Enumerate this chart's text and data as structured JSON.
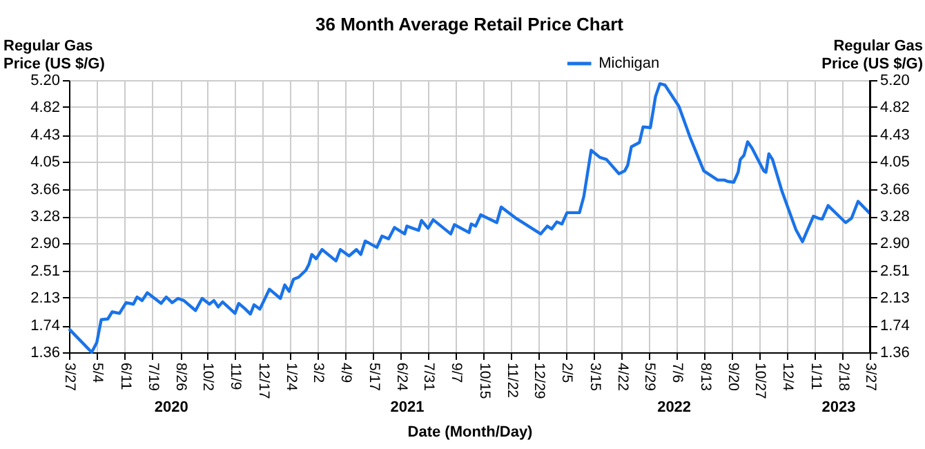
{
  "chart_data": {
    "type": "line",
    "title": "36 Month Average Retail Price Chart",
    "xlabel": "Date (Month/Day)",
    "ylabel": "Regular Gas\nPrice (US $/G)",
    "y2label": "Regular Gas\nPrice (US $/G)",
    "x": [
      "2020-03-27",
      "2020-04-27",
      "2020-05-04",
      "2020-05-10",
      "2020-05-19",
      "2020-05-25",
      "2020-06-04",
      "2020-06-13",
      "2020-06-23",
      "2020-06-28",
      "2020-07-05",
      "2020-07-12",
      "2020-07-31",
      "2020-08-07",
      "2020-08-15",
      "2020-08-23",
      "2020-08-31",
      "2020-09-16",
      "2020-09-25",
      "2020-10-05",
      "2020-10-11",
      "2020-10-17",
      "2020-10-23",
      "2020-11-09",
      "2020-11-14",
      "2020-11-22",
      "2020-11-30",
      "2020-12-05",
      "2020-12-13",
      "2020-12-26",
      "2021-01-10",
      "2021-01-16",
      "2021-01-22",
      "2021-01-28",
      "2021-02-04",
      "2021-02-14",
      "2021-02-18",
      "2021-02-22",
      "2021-02-28",
      "2021-03-08",
      "2021-03-27",
      "2021-04-02",
      "2021-04-14",
      "2021-04-24",
      "2021-04-30",
      "2021-05-06",
      "2021-05-22",
      "2021-05-29",
      "2021-06-07",
      "2021-06-15",
      "2021-06-29",
      "2021-07-02",
      "2021-07-18",
      "2021-07-22",
      "2021-07-31",
      "2021-08-07",
      "2021-08-31",
      "2021-09-05",
      "2021-09-25",
      "2021-09-28",
      "2021-10-04",
      "2021-10-11",
      "2021-11-02",
      "2021-11-08",
      "2021-11-27",
      "2022-01-01",
      "2022-01-10",
      "2022-01-16",
      "2022-01-23",
      "2022-01-30",
      "2022-02-06",
      "2022-02-23",
      "2022-03-01",
      "2022-03-11",
      "2022-03-23",
      "2022-04-01",
      "2022-04-18",
      "2022-04-26",
      "2022-04-30",
      "2022-05-05",
      "2022-05-16",
      "2022-05-21",
      "2022-05-31",
      "2022-06-07",
      "2022-06-13",
      "2022-06-20",
      "2022-07-09",
      "2022-07-24",
      "2022-08-12",
      "2022-08-31",
      "2022-09-09",
      "2022-09-14",
      "2022-09-22",
      "2022-09-28",
      "2022-10-01",
      "2022-10-06",
      "2022-10-11",
      "2022-10-17",
      "2022-11-02",
      "2022-11-05",
      "2022-11-09",
      "2022-11-14",
      "2022-11-27",
      "2022-12-16",
      "2022-12-25",
      "2023-01-01",
      "2023-01-09",
      "2023-01-16",
      "2023-01-21",
      "2023-01-29",
      "2023-02-22",
      "2023-03-02",
      "2023-03-11",
      "2023-03-27"
    ],
    "series": [
      {
        "name": "Michigan",
        "color": "#1a73e8",
        "values": [
          1.69,
          1.36,
          1.5,
          1.82,
          1.83,
          1.93,
          1.91,
          2.06,
          2.04,
          2.14,
          2.09,
          2.2,
          2.05,
          2.14,
          2.06,
          2.12,
          2.09,
          1.95,
          2.12,
          2.04,
          2.09,
          2.0,
          2.07,
          1.91,
          2.05,
          1.98,
          1.9,
          2.03,
          1.97,
          2.25,
          2.12,
          2.31,
          2.22,
          2.39,
          2.42,
          2.52,
          2.6,
          2.74,
          2.68,
          2.81,
          2.65,
          2.81,
          2.72,
          2.81,
          2.74,
          2.93,
          2.84,
          3.0,
          2.96,
          3.12,
          3.03,
          3.14,
          3.08,
          3.22,
          3.11,
          3.23,
          3.03,
          3.16,
          3.05,
          3.17,
          3.14,
          3.3,
          3.19,
          3.41,
          3.26,
          3.03,
          3.14,
          3.1,
          3.2,
          3.17,
          3.33,
          3.33,
          3.56,
          4.21,
          4.11,
          4.08,
          3.88,
          3.92,
          4.0,
          4.26,
          4.32,
          4.54,
          4.53,
          4.97,
          5.15,
          5.13,
          4.83,
          4.4,
          3.92,
          3.79,
          3.79,
          3.77,
          3.76,
          3.9,
          4.08,
          4.14,
          4.33,
          4.24,
          3.92,
          3.9,
          4.16,
          4.08,
          3.63,
          3.09,
          2.92,
          3.09,
          3.28,
          3.25,
          3.24,
          3.43,
          3.19,
          3.25,
          3.49,
          3.32
        ]
      }
    ],
    "xlim": [
      "2020-03-27",
      "2023-03-27"
    ],
    "xticks": [
      {
        "value": "2020-03-27",
        "label": "3/27"
      },
      {
        "value": "2020-05-04",
        "label": "5/4"
      },
      {
        "value": "2020-06-11",
        "label": "6/11"
      },
      {
        "value": "2020-07-19",
        "label": "7/19"
      },
      {
        "value": "2020-08-26",
        "label": "8/26"
      },
      {
        "value": "2020-10-02",
        "label": "10/2"
      },
      {
        "value": "2020-11-09",
        "label": "11/9"
      },
      {
        "value": "2020-12-17",
        "label": "12/17"
      },
      {
        "value": "2021-01-24",
        "label": "1/24"
      },
      {
        "value": "2021-03-02",
        "label": "3/2"
      },
      {
        "value": "2021-04-09",
        "label": "4/9"
      },
      {
        "value": "2021-05-17",
        "label": "5/17"
      },
      {
        "value": "2021-06-24",
        "label": "6/24"
      },
      {
        "value": "2021-07-31",
        "label": "7/31"
      },
      {
        "value": "2021-09-07",
        "label": "9/7"
      },
      {
        "value": "2021-10-15",
        "label": "10/15"
      },
      {
        "value": "2021-11-22",
        "label": "11/22"
      },
      {
        "value": "2021-12-29",
        "label": "12/29"
      },
      {
        "value": "2022-02-05",
        "label": "2/5"
      },
      {
        "value": "2022-03-15",
        "label": "3/15"
      },
      {
        "value": "2022-04-22",
        "label": "4/22"
      },
      {
        "value": "2022-05-29",
        "label": "5/29"
      },
      {
        "value": "2022-07-06",
        "label": "7/6"
      },
      {
        "value": "2022-08-13",
        "label": "8/13"
      },
      {
        "value": "2022-09-20",
        "label": "9/20"
      },
      {
        "value": "2022-10-27",
        "label": "10/27"
      },
      {
        "value": "2022-12-04",
        "label": "12/4"
      },
      {
        "value": "2023-01-11",
        "label": "1/11"
      },
      {
        "value": "2023-02-18",
        "label": "2/18"
      },
      {
        "value": "2023-03-27",
        "label": "3/27"
      }
    ],
    "ylim": [
      1.36,
      5.2
    ],
    "yticks": [
      1.36,
      1.74,
      2.13,
      2.51,
      {
        "value": 2.9,
        "label": "2.90"
      },
      3.28,
      3.66,
      4.05,
      4.43,
      4.82,
      {
        "value": 5.2,
        "label": "5.20"
      }
    ],
    "y2lim": [
      1.36,
      5.2
    ],
    "y2ticks": [
      1.36,
      1.74,
      2.13,
      2.51,
      {
        "value": 2.9,
        "label": "2.90"
      },
      3.28,
      3.66,
      4.05,
      4.43,
      4.82,
      {
        "value": 5.2,
        "label": "5.20"
      }
    ],
    "annotations": [
      "2020",
      "2021",
      "2022",
      "2023"
    ],
    "grid": true,
    "legend": "top",
    "marker": "none",
    "line_style": "solid"
  }
}
